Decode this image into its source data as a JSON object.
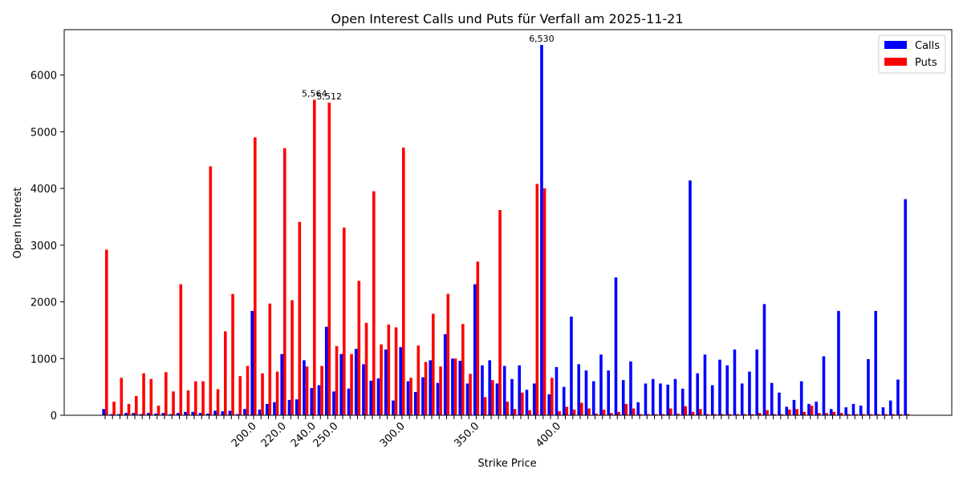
{
  "chart_data": {
    "type": "bar",
    "title": "Open Interest Calls und Puts für Verfall am 2025-11-21",
    "xlabel": "Strike Price",
    "ylabel": "Open Interest",
    "ylim": [
      0,
      6800
    ],
    "y_ticks": [
      0,
      1000,
      2000,
      3000,
      4000,
      5000,
      6000
    ],
    "x_tick_labels": [
      "200.0",
      "220.0",
      "240.0",
      "250.0",
      "300.0",
      "350.0",
      "400.0"
    ],
    "x_tick_label_slots": [
      20,
      24,
      28,
      31,
      40,
      50,
      61
    ],
    "legend_position": "top-right",
    "colors": {
      "calls": "#0000ff",
      "puts": "#ff0000"
    },
    "series": [
      {
        "name": "Calls",
        "values": [
          110,
          20,
          20,
          40,
          40,
          20,
          40,
          30,
          40,
          20,
          40,
          60,
          60,
          40,
          30,
          80,
          70,
          80,
          20,
          110,
          1840,
          100,
          200,
          230,
          1080,
          270,
          280,
          970,
          480,
          530,
          1560,
          420,
          1080,
          470,
          1170,
          900,
          610,
          650,
          1160,
          260,
          1200,
          600,
          410,
          670,
          970,
          570,
          1430,
          1000,
          960,
          560,
          2310,
          880,
          970,
          560,
          870,
          640,
          880,
          450,
          560,
          6530,
          370,
          850,
          500,
          1740,
          900,
          790,
          600,
          1070,
          790,
          2430,
          620,
          950,
          230,
          560,
          640,
          560,
          540,
          640,
          470,
          4140,
          740,
          1070,
          530,
          980,
          880,
          1160,
          560,
          770,
          1160,
          1960,
          570,
          400,
          150,
          270,
          600,
          200,
          240,
          1040,
          110,
          1840,
          140,
          200,
          170,
          990,
          1840,
          140,
          260,
          630,
          3810
        ]
      },
      {
        "name": "Puts",
        "values": [
          2920,
          240,
          660,
          200,
          340,
          740,
          640,
          170,
          760,
          420,
          2310,
          440,
          600,
          600,
          4390,
          460,
          1480,
          2140,
          690,
          870,
          4900,
          740,
          1970,
          770,
          4710,
          2030,
          3410,
          860,
          5564,
          870,
          5512,
          1220,
          3310,
          1080,
          2370,
          1630,
          3950,
          1250,
          1600,
          1550,
          4720,
          660,
          1230,
          940,
          1790,
          860,
          2140,
          1000,
          1610,
          730,
          2710,
          320,
          620,
          3620,
          240,
          110,
          400,
          90,
          4080,
          4000,
          660,
          70,
          150,
          100,
          220,
          120,
          30,
          100,
          40,
          60,
          200,
          120,
          20,
          20,
          20,
          20,
          120,
          30,
          160,
          60,
          110,
          20,
          20,
          20,
          20,
          20,
          20,
          20,
          40,
          90,
          20,
          20,
          100,
          110,
          60,
          170,
          40,
          40,
          60,
          40,
          20,
          20,
          20,
          20,
          20,
          20,
          20,
          20,
          20
        ]
      }
    ],
    "annotations": [
      "6,530",
      "5,564",
      "5,512"
    ]
  }
}
